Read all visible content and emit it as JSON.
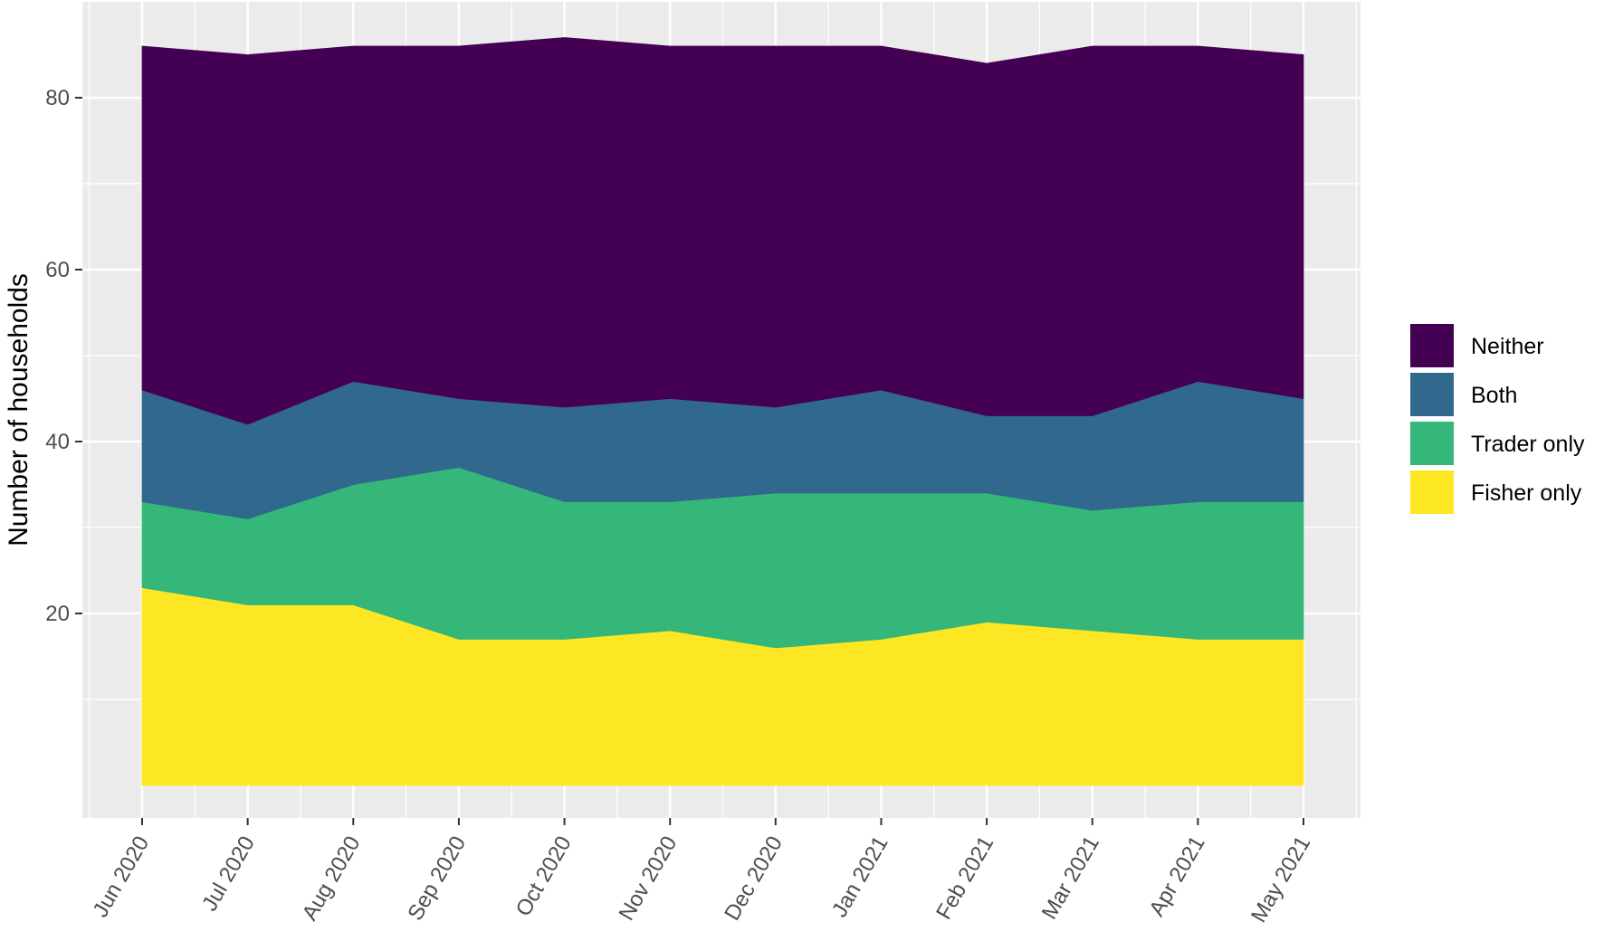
{
  "chart_data": {
    "type": "area",
    "stacked": true,
    "title": "",
    "xlabel": "",
    "ylabel": "Number of households",
    "x": [
      "Jun 2020",
      "Jul 2020",
      "Aug 2020",
      "Sep 2020",
      "Oct 2020",
      "Nov 2020",
      "Dec 2020",
      "Jan 2021",
      "Feb 2021",
      "Mar 2021",
      "Apr 2021",
      "May 2021"
    ],
    "x_dates": [
      "2020-06-01",
      "2020-07-01",
      "2020-08-01",
      "2020-09-01",
      "2020-10-01",
      "2020-11-01",
      "2020-12-01",
      "2021-01-01",
      "2021-02-01",
      "2021-03-01",
      "2021-04-01",
      "2021-05-01"
    ],
    "y_ticks": [
      20,
      40,
      60,
      80
    ],
    "ylim": [
      0,
      86
    ],
    "grid": true,
    "legend_position": "right",
    "series": [
      {
        "name": "Fisher only",
        "color": "#FDE725",
        "values": [
          23,
          21,
          21,
          17,
          17,
          18,
          16,
          17,
          19,
          18,
          17,
          17
        ]
      },
      {
        "name": "Trader only",
        "color": "#35B779",
        "values": [
          10,
          10,
          14,
          20,
          16,
          15,
          18,
          17,
          15,
          14,
          16,
          16
        ]
      },
      {
        "name": "Both",
        "color": "#31688E",
        "values": [
          13,
          11,
          12,
          8,
          11,
          12,
          10,
          12,
          9,
          11,
          14,
          12
        ]
      },
      {
        "name": "Neither",
        "color": "#440154",
        "values": [
          40,
          43,
          39,
          41,
          43,
          41,
          42,
          40,
          41,
          43,
          39,
          40
        ]
      }
    ],
    "legend_order": [
      "Neither",
      "Both",
      "Trader only",
      "Fisher only"
    ],
    "panel_background": "#EBEBEB",
    "grid_color": "#FFFFFF"
  }
}
